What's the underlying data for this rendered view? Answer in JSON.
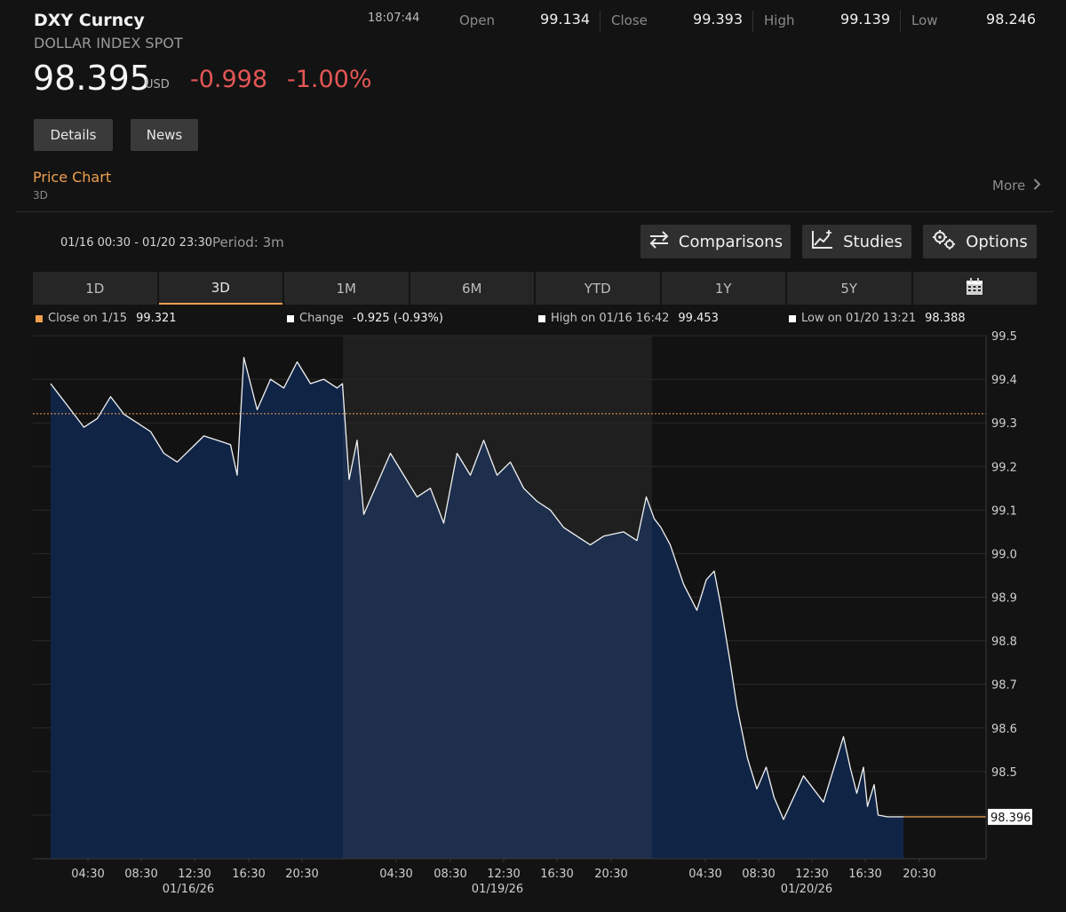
{
  "header": {
    "ticker": "DXY Curncy",
    "name": "DOLLAR INDEX SPOT",
    "price": "98.395",
    "currency": "USD",
    "change": "-0.998",
    "change_pct": "-1.00%",
    "time": "18:07:44",
    "open_label": "Open",
    "open_value": "99.134",
    "close_label": "Close",
    "close_value": "99.393",
    "high_label": "High",
    "high_value": "99.139",
    "low_label": "Low",
    "low_value": "98.246"
  },
  "buttons": {
    "details": "Details",
    "news": "News"
  },
  "price_chart": {
    "title": "Price Chart",
    "subtitle": "3D",
    "more": "More"
  },
  "toolbar": {
    "range": "01/16 00:30 - 01/20 23:30",
    "period": "Period: 3m",
    "comparisons": "Comparisons",
    "studies": "Studies",
    "options": "Options"
  },
  "tabs": [
    "1D",
    "3D",
    "1M",
    "6M",
    "YTD",
    "1Y",
    "5Y"
  ],
  "legend": {
    "close_label": "Close on 1/15",
    "close_value": "99.321",
    "change_label": "Change",
    "change_value": "-0.925 (-0.93%)",
    "high_label": "High on 01/16 16:42",
    "high_value": "99.453",
    "low_label": "Low on 01/20 13:21",
    "low_value": "98.388"
  },
  "colors": {
    "accent": "#f0a050",
    "negative": "#e45656",
    "area": "#102446",
    "area_mid": "#1d2f4d"
  },
  "chart_data": {
    "type": "area",
    "ylim": [
      98.3,
      99.5
    ],
    "yticks": [
      "99.5",
      "99.4",
      "99.3",
      "99.2",
      "99.1",
      "99.0",
      "98.9",
      "98.8",
      "98.7",
      "98.6",
      "98.5"
    ],
    "xticks": [
      "04:30",
      "08:30",
      "12:30",
      "16:30",
      "20:30",
      "04:30",
      "08:30",
      "12:30",
      "16:30",
      "20:30",
      "04:30",
      "08:30",
      "12:30",
      "16:30",
      "20:30"
    ],
    "date_labels": [
      "01/16/26",
      "01/19/26",
      "01/20/26"
    ],
    "prev_close": 99.321,
    "last_label": "98.396",
    "series": [
      {
        "x": [
          0,
          0.5,
          1.5,
          2.5,
          3.5,
          4.5,
          5.5,
          6.5,
          7.5,
          8.5,
          9.5,
          10.5,
          11.5,
          12.5,
          13.5,
          14,
          14.5,
          15.5,
          16.5,
          17.5,
          18.5,
          19.5,
          20.5,
          21.5,
          21.9,
          22.4,
          23,
          23.5,
          24.5,
          25.5,
          26.5,
          27.5,
          28.5,
          29.5,
          30.5,
          31.5,
          32.5,
          33.5,
          34.5,
          35.5,
          36.5,
          37.5,
          38.5,
          39.5,
          40.5,
          41.5,
          43,
          44,
          44.7,
          45.3,
          45.8,
          46.5,
          47.5,
          48.5,
          49.2,
          49.8,
          50.3,
          51,
          51.5,
          52.3,
          53,
          53.7,
          54.3,
          55,
          56.5,
          58,
          59.5,
          60,
          60.5,
          61,
          61.3,
          61.8,
          62.1,
          62.8,
          63.5,
          64
        ],
        "y": [
          99.39,
          99.37,
          99.33,
          99.29,
          99.31,
          99.36,
          99.32,
          99.3,
          99.28,
          99.23,
          99.21,
          99.24,
          99.27,
          99.26,
          99.25,
          99.18,
          99.45,
          99.33,
          99.4,
          99.38,
          99.44,
          99.39,
          99.4,
          99.38,
          99.39,
          99.17,
          99.26,
          99.09,
          99.16,
          99.23,
          99.18,
          99.13,
          99.15,
          99.07,
          99.23,
          99.18,
          99.26,
          99.18,
          99.21,
          99.15,
          99.12,
          99.1,
          99.06,
          99.04,
          99.02,
          99.04,
          99.05,
          99.03,
          99.13,
          99.08,
          99.06,
          99.02,
          98.93,
          98.87,
          98.94,
          98.96,
          98.88,
          98.75,
          98.65,
          98.53,
          98.46,
          98.51,
          98.44,
          98.39,
          98.49,
          98.43,
          98.58,
          98.51,
          98.45,
          98.51,
          98.42,
          98.47,
          98.4,
          98.396,
          98.396,
          98.396
        ]
      }
    ]
  }
}
